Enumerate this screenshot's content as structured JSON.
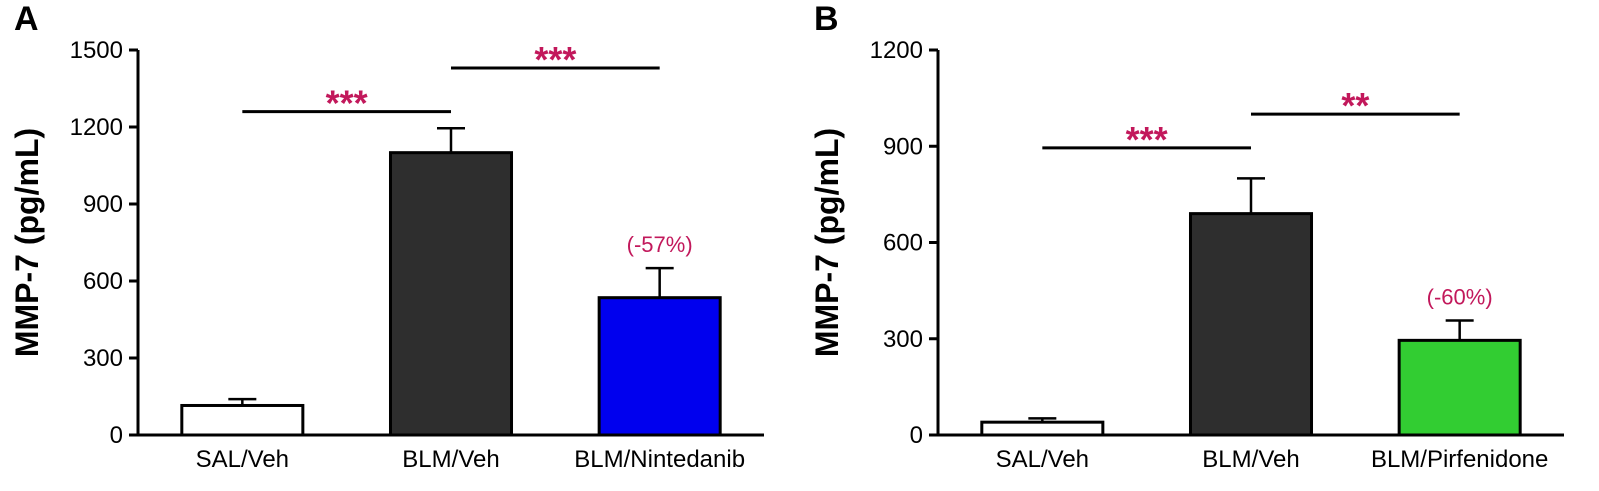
{
  "figure": {
    "background": "#FFFFFF",
    "axis_color": "#000000",
    "annotation_color": "#C2185B"
  },
  "chart_data": [
    {
      "type": "bar",
      "panel_label": "A",
      "title": "",
      "xlabel": "",
      "ylabel": "MMP-7 (pg/mL)",
      "ylim": [
        0,
        1500
      ],
      "yticks": [
        0,
        300,
        600,
        900,
        1200,
        1500
      ],
      "grid": false,
      "legend": null,
      "categories": [
        "SAL/Veh",
        "BLM/Veh",
        "BLM/Nintedanib"
      ],
      "values": [
        115,
        1100,
        535
      ],
      "errors": [
        25,
        95,
        115
      ],
      "bar_colors": [
        "#FFFFFF",
        "#2E2E2E",
        "#0000EE"
      ],
      "significance": [
        {
          "from": 0,
          "to": 1,
          "y": 1260,
          "label": "***"
        },
        {
          "from": 1,
          "to": 2,
          "y": 1430,
          "label": "***"
        }
      ],
      "bar_labels": [
        {
          "bar": 2,
          "label": "(-57%)"
        }
      ]
    },
    {
      "type": "bar",
      "panel_label": "B",
      "title": "",
      "xlabel": "",
      "ylabel": "MMP-7 (pg/mL)",
      "ylim": [
        0,
        1200
      ],
      "yticks": [
        0,
        300,
        600,
        900,
        1200
      ],
      "grid": false,
      "legend": null,
      "categories": [
        "SAL/Veh",
        "BLM/Veh",
        "BLM/Pirfenidone"
      ],
      "values": [
        40,
        690,
        295
      ],
      "errors": [
        12,
        110,
        62
      ],
      "bar_colors": [
        "#FFFFFF",
        "#2E2E2E",
        "#32CD32"
      ],
      "significance": [
        {
          "from": 0,
          "to": 1,
          "y": 895,
          "label": "***"
        },
        {
          "from": 1,
          "to": 2,
          "y": 1000,
          "label": "**"
        }
      ],
      "bar_labels": [
        {
          "bar": 2,
          "label": "(-60%)"
        }
      ]
    }
  ]
}
